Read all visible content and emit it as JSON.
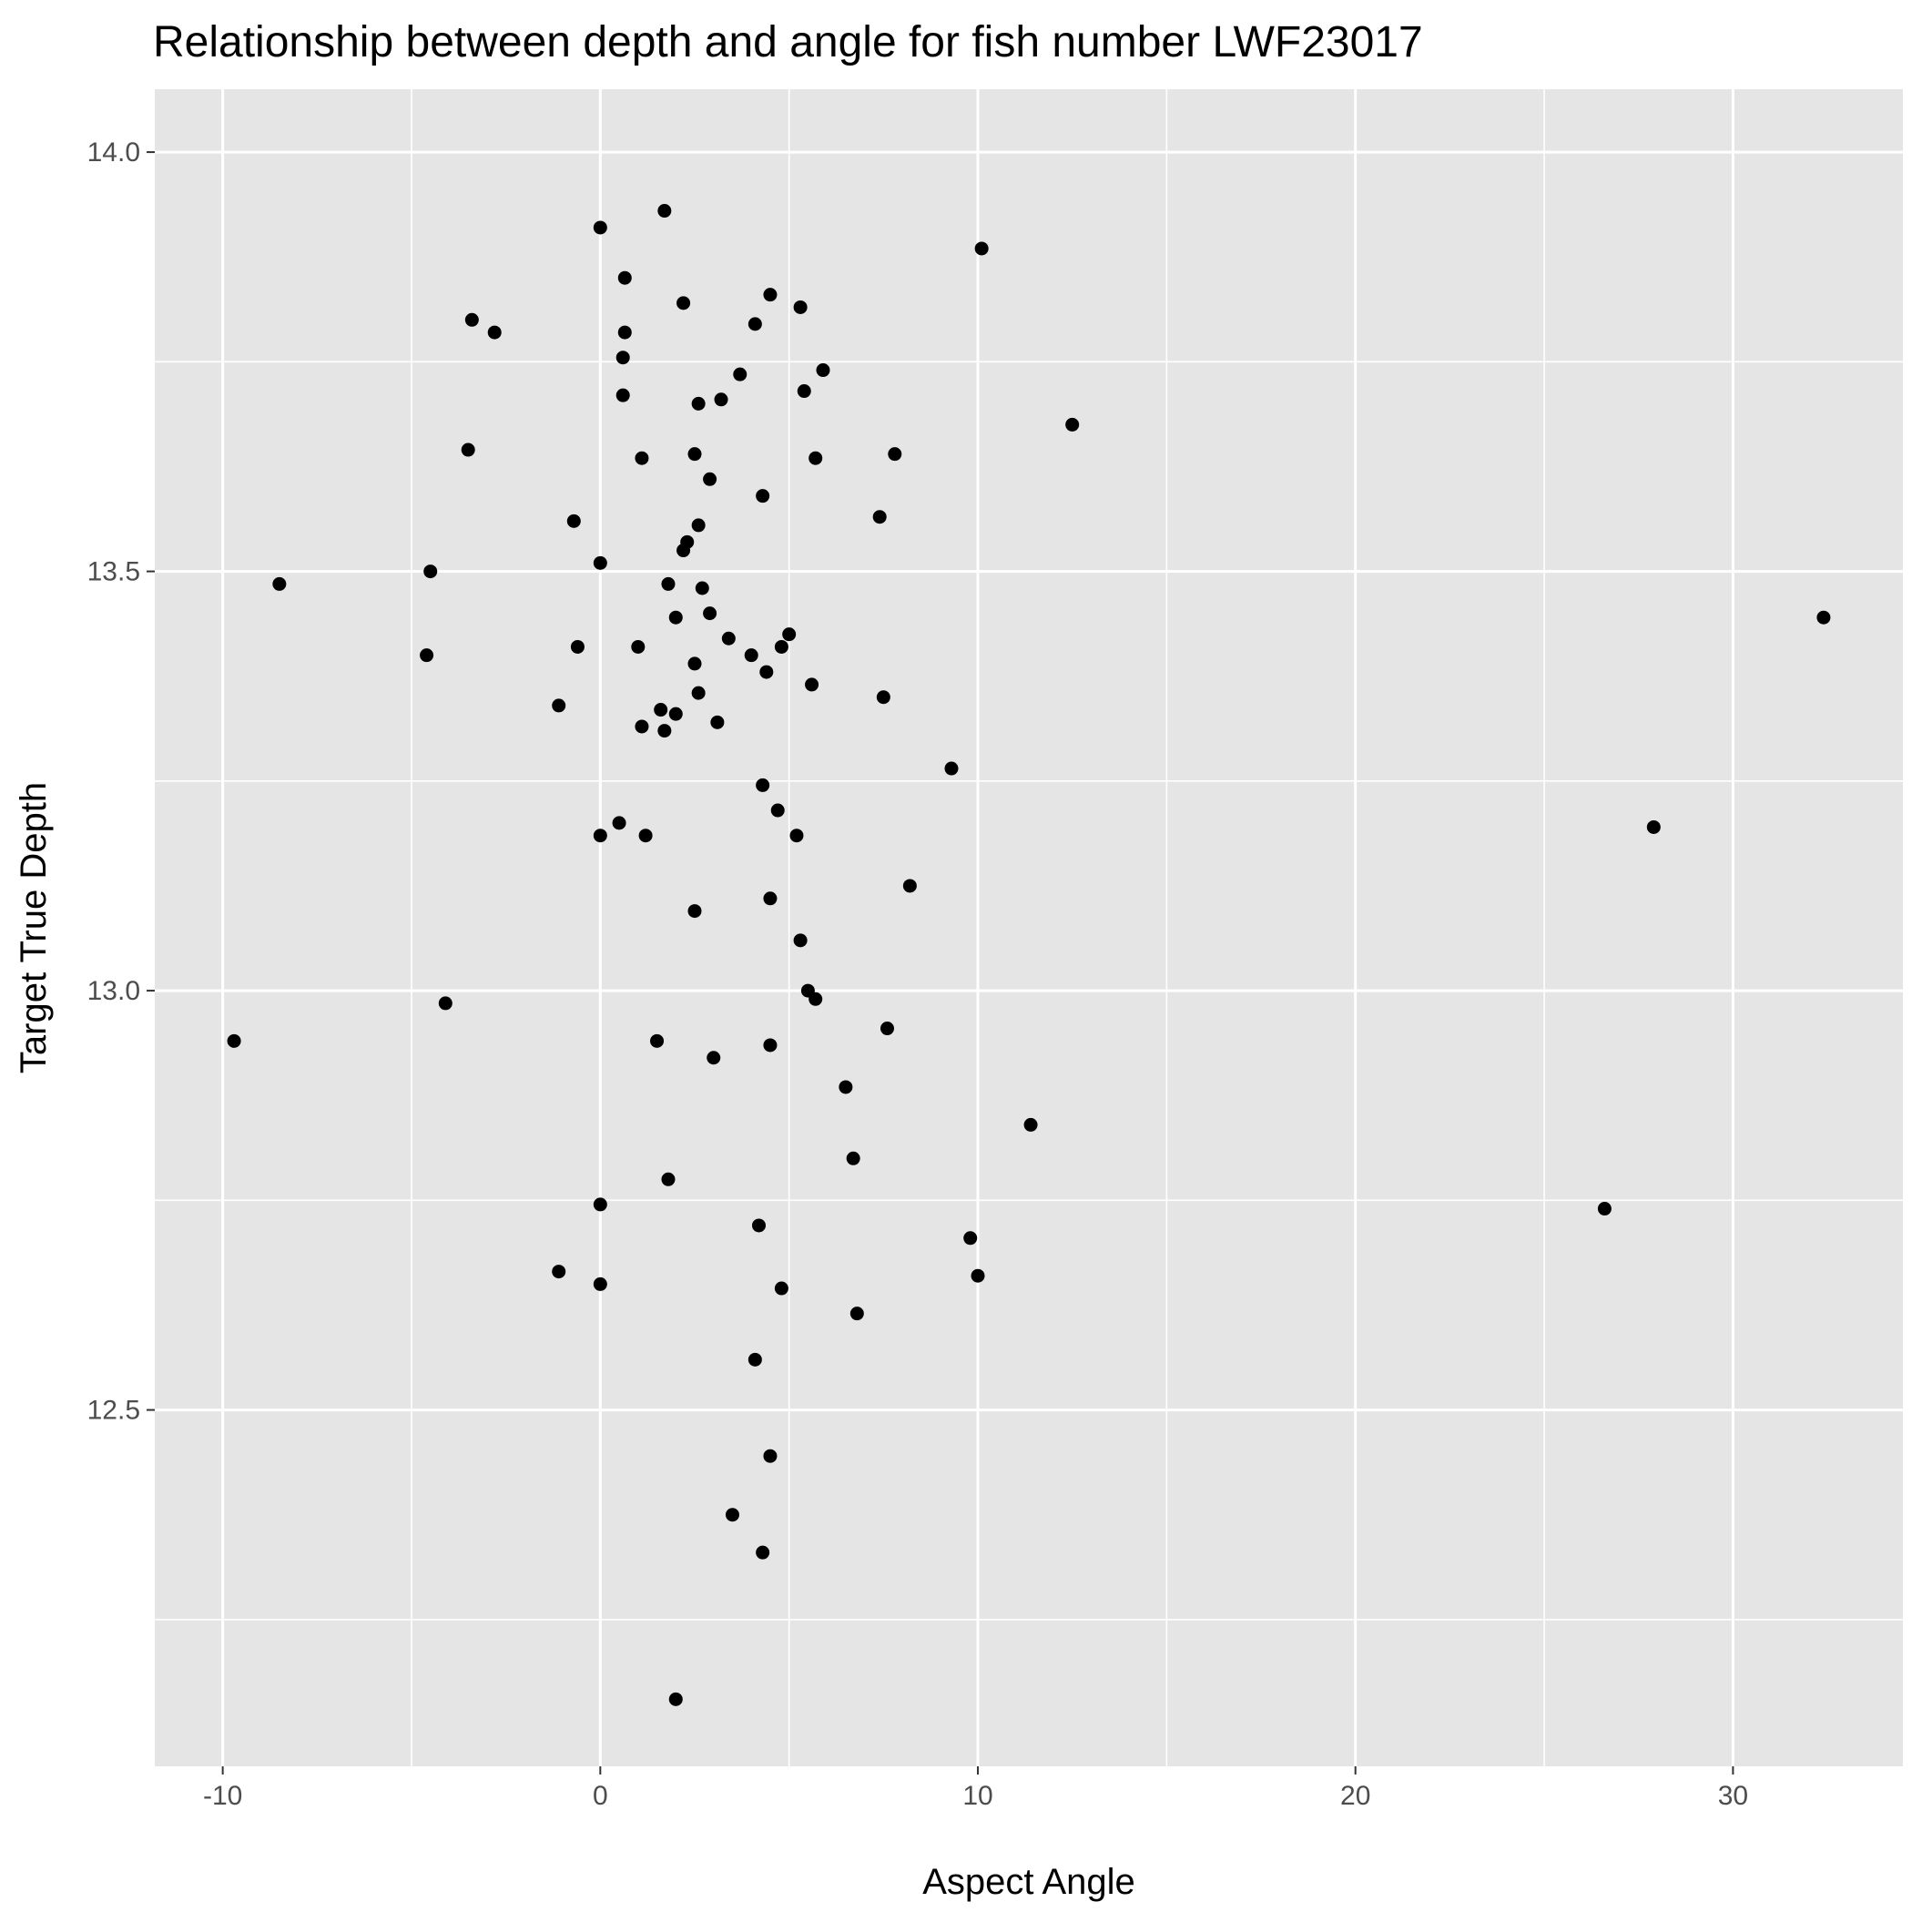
{
  "chart_data": {
    "type": "scatter",
    "title": "Relationship between depth and angle for fish number LWF23017",
    "xlabel": "Aspect Angle",
    "ylabel": "Target True Depth",
    "xlim": [
      -11.8,
      34.5
    ],
    "ylim": [
      12.075,
      14.075
    ],
    "x_ticks": [
      -10,
      0,
      10,
      20,
      30
    ],
    "x_tick_labels": [
      "-10",
      "0",
      "10",
      "20",
      "30"
    ],
    "y_ticks": [
      12.5,
      13.0,
      13.5,
      14.0
    ],
    "y_tick_labels": [
      "12.5",
      "13.0",
      "13.5",
      "14.0"
    ],
    "grid": true,
    "legend": "none",
    "colors": {
      "panel": "#e5e5e5",
      "grid": "#ffffff",
      "point": "#000000",
      "tick": "#333333",
      "tick_label": "#4d4d4d"
    },
    "series": [
      {
        "points": [
          [
            1.7,
            13.93
          ],
          [
            0.0,
            13.91
          ],
          [
            10.1,
            13.885
          ],
          [
            0.65,
            13.85
          ],
          [
            4.5,
            13.83
          ],
          [
            2.2,
            13.82
          ],
          [
            5.3,
            13.815
          ],
          [
            -3.4,
            13.8
          ],
          [
            4.1,
            13.795
          ],
          [
            -2.8,
            13.785
          ],
          [
            0.65,
            13.785
          ],
          [
            0.6,
            13.755
          ],
          [
            3.7,
            13.735
          ],
          [
            5.9,
            13.74
          ],
          [
            5.4,
            13.715
          ],
          [
            0.6,
            13.71
          ],
          [
            3.2,
            13.705
          ],
          [
            2.6,
            13.7
          ],
          [
            12.5,
            13.675
          ],
          [
            -3.5,
            13.645
          ],
          [
            2.5,
            13.64
          ],
          [
            7.8,
            13.64
          ],
          [
            1.1,
            13.635
          ],
          [
            5.7,
            13.635
          ],
          [
            2.9,
            13.61
          ],
          [
            4.3,
            13.59
          ],
          [
            7.4,
            13.565
          ],
          [
            -0.7,
            13.56
          ],
          [
            2.6,
            13.555
          ],
          [
            2.3,
            13.535
          ],
          [
            2.2,
            13.525
          ],
          [
            0.0,
            13.51
          ],
          [
            -8.5,
            13.485
          ],
          [
            -4.5,
            13.5
          ],
          [
            1.8,
            13.485
          ],
          [
            2.7,
            13.48
          ],
          [
            2.9,
            13.45
          ],
          [
            2.0,
            13.445
          ],
          [
            32.4,
            13.445
          ],
          [
            5.0,
            13.425
          ],
          [
            3.4,
            13.42
          ],
          [
            4.8,
            13.41
          ],
          [
            -0.6,
            13.41
          ],
          [
            1.0,
            13.41
          ],
          [
            -4.6,
            13.4
          ],
          [
            4.0,
            13.4
          ],
          [
            2.5,
            13.39
          ],
          [
            4.4,
            13.38
          ],
          [
            5.6,
            13.365
          ],
          [
            2.6,
            13.355
          ],
          [
            7.5,
            13.35
          ],
          [
            -1.1,
            13.34
          ],
          [
            1.6,
            13.335
          ],
          [
            2.0,
            13.33
          ],
          [
            3.1,
            13.32
          ],
          [
            1.1,
            13.315
          ],
          [
            1.7,
            13.31
          ],
          [
            9.3,
            13.265
          ],
          [
            4.3,
            13.245
          ],
          [
            4.7,
            13.215
          ],
          [
            0.5,
            13.2
          ],
          [
            27.9,
            13.195
          ],
          [
            5.2,
            13.185
          ],
          [
            0.0,
            13.185
          ],
          [
            1.2,
            13.185
          ],
          [
            8.2,
            13.125
          ],
          [
            4.5,
            13.11
          ],
          [
            2.5,
            13.095
          ],
          [
            5.3,
            13.06
          ],
          [
            5.5,
            13.0
          ],
          [
            5.7,
            12.99
          ],
          [
            -4.1,
            12.985
          ],
          [
            7.6,
            12.955
          ],
          [
            -9.7,
            12.94
          ],
          [
            1.5,
            12.94
          ],
          [
            4.5,
            12.935
          ],
          [
            3.0,
            12.92
          ],
          [
            6.5,
            12.885
          ],
          [
            11.4,
            12.84
          ],
          [
            6.7,
            12.8
          ],
          [
            1.8,
            12.775
          ],
          [
            0.0,
            12.745
          ],
          [
            26.6,
            12.74
          ],
          [
            4.2,
            12.72
          ],
          [
            9.8,
            12.705
          ],
          [
            -1.1,
            12.665
          ],
          [
            10.0,
            12.66
          ],
          [
            0.0,
            12.65
          ],
          [
            4.8,
            12.645
          ],
          [
            6.8,
            12.615
          ],
          [
            4.1,
            12.56
          ],
          [
            4.5,
            12.445
          ],
          [
            3.5,
            12.375
          ],
          [
            4.3,
            12.33
          ],
          [
            2.0,
            12.155
          ]
        ]
      }
    ]
  }
}
